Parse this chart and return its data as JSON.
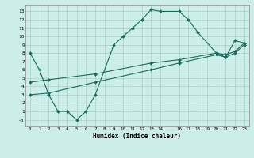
{
  "xlabel": "Humidex (Indice chaleur)",
  "bg_color": "#cceee8",
  "grid_color": "#aacccc",
  "line_color": "#1a6b5a",
  "xlim": [
    -0.5,
    23.5
  ],
  "ylim": [
    -0.8,
    13.8
  ],
  "xticks": [
    0,
    1,
    2,
    3,
    4,
    5,
    6,
    7,
    8,
    9,
    10,
    11,
    12,
    13,
    14,
    16,
    17,
    18,
    19,
    20,
    21,
    22,
    23
  ],
  "yticks": [
    0,
    1,
    2,
    3,
    4,
    5,
    6,
    7,
    8,
    9,
    10,
    11,
    12,
    13
  ],
  "ytick_labels": [
    "-0",
    "1",
    "2",
    "3",
    "4",
    "5",
    "6",
    "7",
    "8",
    "9",
    "10",
    "11",
    "12",
    "13"
  ],
  "line1_x": [
    0,
    1,
    2,
    3,
    4,
    5,
    6,
    7,
    9,
    10,
    11,
    12,
    13,
    14,
    16,
    17,
    18,
    20,
    21,
    22,
    23
  ],
  "line1_y": [
    8,
    6,
    3,
    1,
    1,
    0,
    1,
    3,
    9,
    10,
    11,
    12,
    13.2,
    13,
    13,
    12,
    10.5,
    8,
    7.5,
    9.5,
    9.2
  ],
  "line2_x": [
    0,
    2,
    7,
    13,
    16,
    20,
    21,
    22,
    23
  ],
  "line2_y": [
    3,
    3.2,
    4.5,
    6,
    6.8,
    7.8,
    7.5,
    8,
    9
  ],
  "line3_x": [
    0,
    2,
    7,
    13,
    16,
    20,
    21,
    22,
    23
  ],
  "line3_y": [
    4.5,
    4.8,
    5.5,
    6.8,
    7.2,
    8,
    7.8,
    8.2,
    9.2
  ]
}
